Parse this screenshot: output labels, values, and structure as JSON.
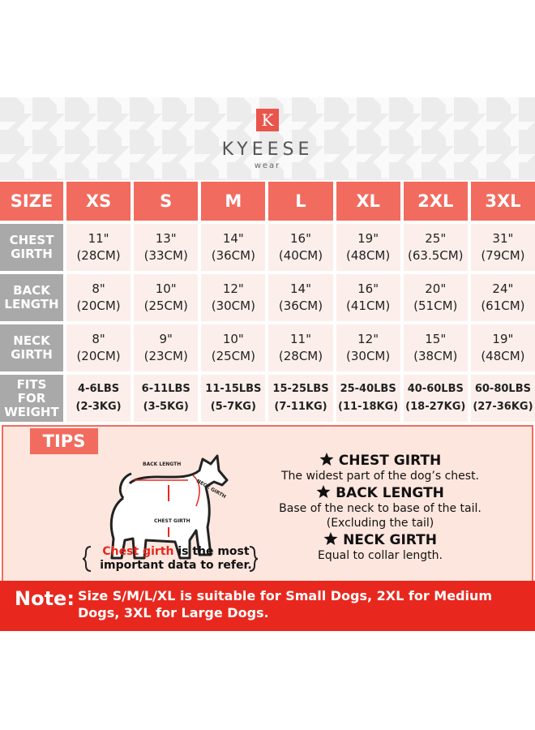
{
  "header": {
    "logo_letter": "K",
    "brand": "KYEESE",
    "sub": "wear"
  },
  "table": {
    "columns": [
      "SIZE",
      "XS",
      "S",
      "M",
      "L",
      "XL",
      "2XL",
      "3XL"
    ],
    "rows": [
      {
        "label": "CHEST GIRTH",
        "cells": [
          [
            "11\"",
            "(28CM)"
          ],
          [
            "13\"",
            "(33CM)"
          ],
          [
            "14\"",
            "(36CM)"
          ],
          [
            "16\"",
            "(40CM)"
          ],
          [
            "19\"",
            "(48CM)"
          ],
          [
            "25\"",
            "(63.5CM)"
          ],
          [
            "31\"",
            "(79CM)"
          ]
        ]
      },
      {
        "label": "BACK LENGTH",
        "cells": [
          [
            "8\"",
            "(20CM)"
          ],
          [
            "10\"",
            "(25CM)"
          ],
          [
            "12\"",
            "(30CM)"
          ],
          [
            "14\"",
            "(36CM)"
          ],
          [
            "16\"",
            "(41CM)"
          ],
          [
            "20\"",
            "(51CM)"
          ],
          [
            "24\"",
            "(61CM)"
          ]
        ]
      },
      {
        "label": "NECK GIRTH",
        "cells": [
          [
            "8\"",
            "(20CM)"
          ],
          [
            "9\"",
            "(23CM)"
          ],
          [
            "10\"",
            "(25CM)"
          ],
          [
            "11\"",
            "(28CM)"
          ],
          [
            "12\"",
            "(30CM)"
          ],
          [
            "15\"",
            "(38CM)"
          ],
          [
            "19\"",
            "(48CM)"
          ]
        ]
      },
      {
        "label": "FITS FOR WEIGHT",
        "cells": [
          [
            "4-6LBS",
            "(2-3KG)"
          ],
          [
            "6-11LBS",
            "(3-5KG)"
          ],
          [
            "11-15LBS",
            "(5-7KG)"
          ],
          [
            "15-25LBS",
            "(7-11KG)"
          ],
          [
            "25-40LBS",
            "(11-18KG)"
          ],
          [
            "40-60LBS",
            "(18-27KG)"
          ],
          [
            "60-80LBS",
            "(27-36KG)"
          ]
        ]
      }
    ]
  },
  "tips": {
    "title": "TIPS",
    "diagram": {
      "back_length": "BACK LENGTH",
      "neck_girth": "NECK GIRTH",
      "chest_girth": "CHEST GIRTH"
    },
    "caption": {
      "highlight": "Chest girth",
      "rest": "is the most important data to refer."
    },
    "definitions": [
      {
        "term": "CHEST GIRTH",
        "desc": [
          "The widest part of the dog’s chest."
        ]
      },
      {
        "term": "BACK LENGTH",
        "desc": [
          "Base of the neck to base of the tail.",
          "(Excluding the tail)"
        ]
      },
      {
        "term": "NECK GIRTH",
        "desc": [
          "Equal to collar length."
        ]
      }
    ]
  },
  "note": {
    "label": "Note:",
    "text": "Size S/M/L/XL is suitable for Small Dogs, 2XL for Medium Dogs, 3XL for Large Dogs."
  }
}
